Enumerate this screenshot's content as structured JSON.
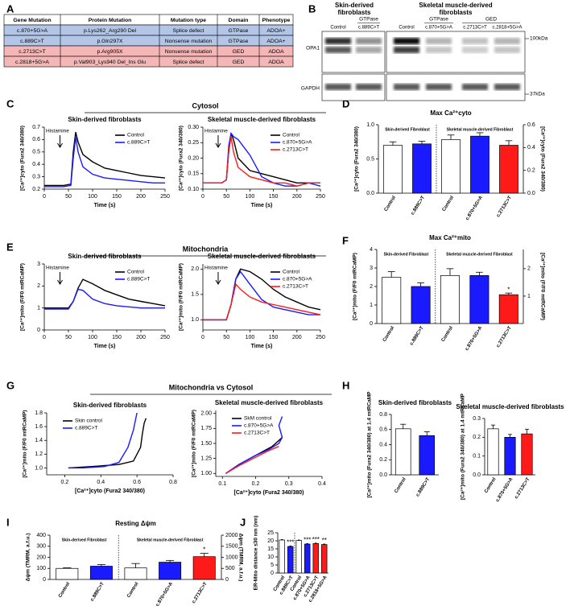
{
  "panel_labels": [
    "A",
    "B",
    "C",
    "D",
    "E",
    "F",
    "G",
    "H",
    "I",
    "J"
  ],
  "section_titles": [
    "Cytosol",
    "Mitochondria",
    "Mitochondria vs Cytosol"
  ],
  "table": {
    "header": [
      "Gene Mutation",
      "Protein Mutation",
      "Mutation type",
      "Domain",
      "Phenotype"
    ],
    "rows": [
      [
        "c.870+5G>A",
        "p.Lys262_Arg290 Del",
        "Splice defect",
        "GTPase",
        "ADOA+"
      ],
      [
        "c.889C>T",
        "p.Gln297X",
        "Nonsense mutation",
        "GTPase",
        "ADOA+"
      ],
      [
        "c.2713C>T",
        "p.Arg905X",
        "Nonsense mutation",
        "GED",
        "ADOA"
      ],
      [
        "c.2818+5G>A",
        "p.Val903_Lys940 Del_Ins Glu",
        "Splice defect",
        "GED",
        "ADOA"
      ]
    ]
  },
  "blot": {
    "skin_title": [
      "Skin-derived",
      "fibroblasts"
    ],
    "muscle_title": [
      "Skeletal muscle-derived",
      "fibroblasts"
    ],
    "domains": [
      "GTPase",
      "GTPase",
      "GED"
    ],
    "lanes": [
      "Control",
      "c.889C>T",
      "Control",
      "c.870+5G>A",
      "c.2713C>T",
      "c.2818+5G>A"
    ],
    "proteins": [
      "OPA1",
      "GAPDH"
    ],
    "sizes": [
      "100kDa",
      "37kDa"
    ]
  },
  "chart_data": [
    {
      "type": "line",
      "title": "Skin-derived fibroblasts",
      "xlabel": "Time (s)",
      "ylabel": "[Ca²⁺]cyto (Fura2 340/380)",
      "annotation": "Histamine",
      "legend": "upper right",
      "xlim": [
        0,
        250
      ],
      "xticks": [
        0,
        50,
        100,
        150,
        200,
        250
      ],
      "ylim": [
        0.2,
        0.7
      ],
      "yticks": [
        0.2,
        0.3,
        0.4,
        0.5,
        0.6,
        0.7
      ],
      "x": [
        0,
        40,
        55,
        60,
        65,
        70,
        80,
        100,
        125,
        150,
        175,
        200,
        225,
        250
      ],
      "series": [
        {
          "name": "Control",
          "color": "#000000",
          "values": [
            0.23,
            0.23,
            0.24,
            0.5,
            0.66,
            0.58,
            0.48,
            0.42,
            0.37,
            0.35,
            0.33,
            0.31,
            0.3,
            0.29
          ]
        },
        {
          "name": "c.889C>T",
          "color": "#1a1aff",
          "values": [
            0.22,
            0.22,
            0.23,
            0.45,
            0.62,
            0.5,
            0.38,
            0.32,
            0.29,
            0.28,
            0.27,
            0.26,
            0.25,
            0.25
          ]
        }
      ]
    },
    {
      "type": "line",
      "title": "Skeletal muscle-derived fibroblasts",
      "xlabel": "Time (s)",
      "ylabel": "[Ca²⁺]cyto (Fura2 340/380)",
      "annotation": "Histamine",
      "legend": "upper right",
      "xlim": [
        0,
        250
      ],
      "xticks": [
        0,
        50,
        100,
        150,
        200,
        250
      ],
      "ylim": [
        0.1,
        0.3
      ],
      "yticks": [
        {
          "value": 0.1,
          "label": "0.10"
        },
        0.15,
        {
          "value": 0.2,
          "label": "0.20"
        },
        0.25,
        {
          "value": 0.3,
          "label": "0.30"
        }
      ],
      "x": [
        0,
        40,
        50,
        55,
        60,
        65,
        75,
        100,
        125,
        150,
        175,
        200,
        225,
        250
      ],
      "series": [
        {
          "name": "Control",
          "color": "#000000",
          "values": [
            0.12,
            0.12,
            0.13,
            0.22,
            0.28,
            0.26,
            0.2,
            0.16,
            0.15,
            0.14,
            0.13,
            0.12,
            0.12,
            0.12
          ]
        },
        {
          "name": "c.870+5G>A",
          "color": "#1a1aff",
          "values": [
            0.12,
            0.12,
            0.13,
            0.24,
            0.28,
            0.27,
            0.26,
            0.21,
            0.14,
            0.12,
            0.11,
            0.11,
            0.12,
            0.11
          ]
        },
        {
          "name": "c.2713C>T",
          "color": "#ff1a1a",
          "values": [
            0.12,
            0.12,
            0.13,
            0.22,
            0.27,
            0.22,
            0.17,
            0.14,
            0.13,
            0.12,
            0.12,
            0.11,
            0.12,
            0.12
          ]
        }
      ]
    },
    {
      "type": "bar",
      "title": "Max Ca²⁺cyto",
      "ylabel": "[Ca²⁺]cyto (Fura2 340/380)",
      "y2label": "[Ca²⁺]cyto (Fura2 340/380)",
      "ylim": [
        0,
        1
      ],
      "yticks": [
        {
          "value": 0,
          "label": "0.0"
        },
        0.5,
        {
          "value": 1,
          "label": "1.0"
        }
      ],
      "y2lim": [
        0,
        0.6
      ],
      "y2ticks": [
        {
          "value": 0,
          "label": "0.0"
        },
        0.2,
        0.4,
        0.6
      ],
      "groups": [
        {
          "label": "Skin-derived Fibroblast",
          "categories": [
            "Control",
            "c.889C>T"
          ],
          "values": [
            0.7,
            0.72
          ],
          "errors": [
            0.05,
            0.04
          ],
          "colors": [
            "#ffffff",
            "#1a1aff"
          ]
        },
        {
          "label": "Skeletal muscle-derived Fibroblast",
          "axis": "y2",
          "categories": [
            "Control",
            "c.870+5G>A",
            "c.2713C>T"
          ],
          "values": [
            0.47,
            0.5,
            0.42
          ],
          "errors": [
            0.04,
            0.03,
            0.04
          ],
          "colors": [
            "#ffffff",
            "#1a1aff",
            "#ff1a1a"
          ]
        }
      ]
    },
    {
      "type": "line",
      "title": "Skin-derived fibroblasts",
      "xlabel": "Time (s)",
      "ylabel": "[Ca²⁺]mito (F/F0 mtRCaMP)",
      "annotation": "Histamine",
      "legend": "upper right",
      "xlim": [
        0,
        250
      ],
      "xticks": [
        0,
        50,
        100,
        150,
        200,
        250
      ],
      "ylim": [
        0,
        3
      ],
      "yticks": [
        0,
        1,
        2,
        3
      ],
      "x": [
        0,
        50,
        60,
        70,
        80,
        100,
        125,
        150,
        175,
        200,
        225,
        250
      ],
      "series": [
        {
          "name": "Control",
          "color": "#000000",
          "values": [
            1,
            1,
            1.3,
            1.9,
            2.3,
            2.1,
            1.8,
            1.6,
            1.4,
            1.3,
            1.2,
            1.1
          ]
        },
        {
          "name": "c.889C>T",
          "color": "#1a1aff",
          "values": [
            0.95,
            0.95,
            1.3,
            1.85,
            1.8,
            1.4,
            1.2,
            1.1,
            1.05,
            1,
            1,
            1
          ]
        }
      ]
    },
    {
      "type": "line",
      "title": "Skeletal muscle-derived fibroblasts",
      "xlabel": "Time (s)",
      "ylabel": "[Ca²⁺]mito (F/F0 mtRCaMP)",
      "annotation": "Histamine",
      "legend": "upper right",
      "xlim": [
        0,
        250
      ],
      "xticks": [
        0,
        50,
        100,
        150,
        200,
        250
      ],
      "ylim": [
        0.8,
        2.1
      ],
      "yticks": [
        {
          "value": 1,
          "label": "1.0"
        },
        1.5,
        {
          "value": 2,
          "label": "2.0"
        }
      ],
      "x": [
        0,
        50,
        60,
        70,
        80,
        100,
        125,
        150,
        175,
        200,
        225,
        250
      ],
      "series": [
        {
          "name": "Control",
          "color": "#000000",
          "values": [
            1,
            1,
            1.3,
            1.8,
            2,
            1.95,
            1.8,
            1.6,
            1.45,
            1.35,
            1.25,
            1.2
          ]
        },
        {
          "name": "c.870+5G>A",
          "color": "#1a1aff",
          "values": [
            1,
            1,
            1.3,
            1.8,
            1.95,
            1.7,
            1.4,
            1.25,
            1.2,
            1.15,
            1.1,
            1.1
          ]
        },
        {
          "name": "c.2713C>T",
          "color": "#ff1a1a",
          "values": [
            1,
            1,
            1.3,
            1.7,
            1.6,
            1.45,
            1.35,
            1.3,
            1.25,
            1.2,
            1.15,
            1.1
          ]
        }
      ]
    },
    {
      "type": "bar",
      "title": "Max Ca²⁺mito",
      "ylabel": "[Ca²⁺]mito (F/F0 mtRCaMP)",
      "y2label": "[Ca²⁺]mito (F/F0 mtRCaMP)",
      "ylim": [
        0,
        4
      ],
      "yticks": [
        0,
        1,
        2,
        3,
        4
      ],
      "y2lim": [
        0,
        2.7
      ],
      "y2ticks": [
        1,
        2
      ],
      "groups": [
        {
          "label": "Skin-derived Fibroblast",
          "categories": [
            "Control",
            "c.889C>T"
          ],
          "values": [
            2.5,
            2
          ],
          "errors": [
            0.3,
            0.2
          ],
          "colors": [
            "#ffffff",
            "#1a1aff"
          ]
        },
        {
          "label": "Skeletal muscle-derived Fibroblast",
          "axis": "y2",
          "categories": [
            "Control",
            "c.870+5G>A",
            "c.2713C>T"
          ],
          "values": [
            1.75,
            1.75,
            1.05
          ],
          "errors": [
            0.25,
            0.12,
            0.06
          ],
          "colors": [
            "#ffffff",
            "#1a1aff",
            "#ff1a1a"
          ],
          "labels": [
            null,
            null,
            "*"
          ]
        }
      ]
    },
    {
      "type": "line",
      "title": "Skin-derived fibroblasts",
      "xlabel": "[Ca²⁺]cyto (Fura2 340/380)",
      "ylabel": "[Ca²⁺]mito (F/F0 mtRCaMP)",
      "legend": "upper left",
      "xlim": [
        0.1,
        0.8
      ],
      "xticks": [
        0.2,
        0.4,
        0.6,
        0.8
      ],
      "ylim": [
        0.9,
        1.8
      ],
      "yticks": [
        {
          "value": 1,
          "label": "1.0"
        },
        1.2,
        1.4,
        1.6,
        1.8
      ],
      "series": [
        {
          "name": "Skin control",
          "color": "#000000",
          "x": [
            0.22,
            0.35,
            0.5,
            0.58,
            0.62,
            0.63,
            0.64,
            0.65
          ],
          "values": [
            1,
            1.02,
            1.05,
            1.1,
            1.3,
            1.5,
            1.65,
            1.72
          ]
        },
        {
          "name": "c.889C>T",
          "color": "#1a1aff",
          "x": [
            0.22,
            0.3,
            0.42,
            0.5,
            0.55,
            0.58,
            0.6
          ],
          "values": [
            1,
            1,
            1.02,
            1.08,
            1.3,
            1.55,
            1.8
          ]
        }
      ]
    },
    {
      "type": "line",
      "title": "Skeletal muscle-derived fibroblasts",
      "xlabel": "[Ca²⁺]cyto (Fura2 340/380)",
      "ylabel": "[Ca²⁺]mito (F/F0 mtRCaMP)",
      "legend": "upper left",
      "xlim": [
        0.08,
        0.4
      ],
      "xticks": [
        0.1,
        0.2,
        0.3,
        0.4
      ],
      "ylim": [
        0.95,
        2.05
      ],
      "yticks": [
        {
          "value": 1,
          "label": "1.00"
        },
        1.25,
        {
          "value": 1.5,
          "label": "1.50"
        },
        1.75,
        {
          "value": 2,
          "label": "2.00"
        }
      ],
      "series": [
        {
          "name": "SkM control",
          "color": "#000000",
          "x": [
            0.11,
            0.15,
            0.2,
            0.25,
            0.27,
            0.28
          ],
          "values": [
            1,
            1.15,
            1.3,
            1.45,
            1.55,
            1.6
          ]
        },
        {
          "name": "c.870+5G>A",
          "color": "#1a1aff",
          "x": [
            0.11,
            0.15,
            0.2,
            0.24,
            0.27,
            0.28,
            0.27,
            0.28
          ],
          "values": [
            1,
            1.15,
            1.3,
            1.4,
            1.5,
            1.6,
            1.8,
            1.95
          ]
        },
        {
          "name": "c.2713C>T",
          "color": "#ff1a1a",
          "x": [
            0.11,
            0.15,
            0.2,
            0.24,
            0.27
          ],
          "values": [
            1,
            1.13,
            1.27,
            1.38,
            1.45
          ]
        }
      ]
    },
    {
      "type": "bar",
      "title": "Skin-derived fibroblasts",
      "ylabel": "[Ca²⁺]mito (Fura2 340/380) at 1.4 mtRCaMP",
      "ylim": [
        0,
        0.8
      ],
      "yticks": [
        {
          "value": 0,
          "label": "0.0"
        },
        0.2,
        0.4,
        0.6,
        0.8
      ],
      "groups": [
        {
          "categories": [
            "Control",
            "c.889C>T"
          ],
          "values": [
            0.61,
            0.52
          ],
          "errors": [
            0.06,
            0.05
          ],
          "colors": [
            "#ffffff",
            "#1a1aff"
          ]
        }
      ]
    },
    {
      "type": "bar",
      "title": "Skeletal muscle-derived fibroblasts",
      "ylabel": "[Ca²⁺]mito (Fura2 340/380) at 1.4 mtRCaMP",
      "ylim": [
        0,
        0.3
      ],
      "yticks": [
        {
          "value": 0,
          "label": "0.0"
        },
        0.1,
        0.2,
        0.3
      ],
      "groups": [
        {
          "categories": [
            "Control",
            "c.870+5G>A",
            "c.2713C>T"
          ],
          "values": [
            0.245,
            0.2,
            0.218
          ],
          "errors": [
            0.02,
            0.015,
            0.025
          ],
          "colors": [
            "#ffffff",
            "#1a1aff",
            "#ff1a1a"
          ]
        }
      ]
    },
    {
      "type": "bar",
      "title": "Resting Δψm",
      "ylabel": "Δψm (TMRM, a.f.u.)",
      "y2label": "Δψm (TMRM, a.f.u.)",
      "ylim": [
        0,
        400
      ],
      "yticks": [
        0,
        100,
        200,
        300,
        400
      ],
      "y2lim": [
        0,
        2000
      ],
      "y2ticks": [
        0,
        500,
        1000,
        1500,
        2000
      ],
      "groups": [
        {
          "label": "Skin-derived Fibroblast",
          "categories": [
            "Control",
            "c.889C>T"
          ],
          "values": [
            100,
            120
          ],
          "errors": [
            5,
            15
          ],
          "colors": [
            "#ffffff",
            "#1a1aff"
          ]
        },
        {
          "label": "Skeletal muscle-derived Fibroblast",
          "axis": "y2",
          "categories": [
            "Control",
            "c.870+5G>A",
            "c.2713C>T"
          ],
          "values": [
            520,
            780,
            1030
          ],
          "errors": [
            200,
            80,
            150
          ],
          "colors": [
            "#ffffff",
            "#1a1aff",
            "#ff1a1a"
          ],
          "labels": [
            null,
            null,
            "*"
          ]
        }
      ]
    },
    {
      "type": "bar",
      "ylabel": "ER-Mito distance ≤30 nm (nm)",
      "ylim": [
        0,
        25
      ],
      "yticks": [
        0,
        5,
        10,
        15,
        20,
        25
      ],
      "groups": [
        {
          "categories": [
            "Control",
            "c.889C>T"
          ],
          "values": [
            20.5,
            16.5
          ],
          "errors": [
            0.3,
            0.3
          ],
          "colors": [
            "#ffffff",
            "#1a1aff"
          ],
          "labels": [
            null,
            "***"
          ]
        },
        {
          "categories": [
            "Control",
            "c.870+5G>A",
            "c.2713C>T",
            "c.2818+5G>A"
          ],
          "values": [
            20.2,
            18,
            18.3,
            17.7
          ],
          "errors": [
            0.3,
            0.3,
            0.3,
            0.3
          ],
          "colors": [
            "#ffffff",
            "#1a1aff",
            "#ff1a1a",
            "#ff1a1a"
          ],
          "labels": [
            null,
            "***",
            "***",
            "**"
          ]
        }
      ]
    }
  ]
}
